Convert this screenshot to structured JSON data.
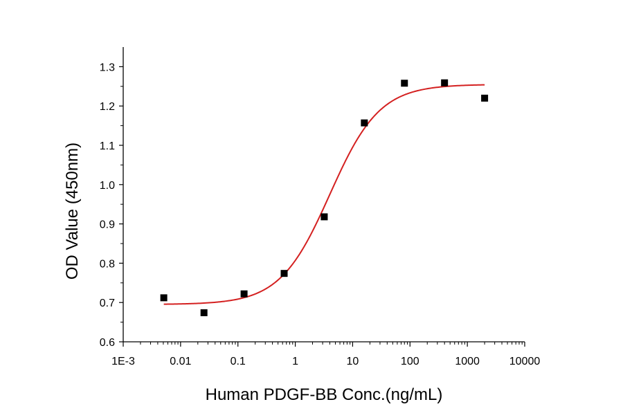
{
  "chart_data": {
    "type": "scatter",
    "xlabel": "Human PDGF-BB Conc.(ng/mL)",
    "ylabel": "OD Value (450nm)",
    "xscale": "log",
    "xlim": [
      0.001,
      10000
    ],
    "ylim": [
      0.6,
      1.35
    ],
    "xticks": [
      0.001,
      0.01,
      0.1,
      1,
      10,
      100,
      1000,
      10000
    ],
    "xtick_labels": [
      "1E-3",
      "0.01",
      "0.1",
      "1",
      "10",
      "100",
      "1000",
      "10000"
    ],
    "yticks": [
      0.6,
      0.7,
      0.8,
      0.9,
      1.0,
      1.1,
      1.2,
      1.3
    ],
    "ytick_labels": [
      "0.6",
      "0.7",
      "0.8",
      "0.9",
      "1.0",
      "1.1",
      "1.2",
      "1.3"
    ],
    "grid": false,
    "series": [
      {
        "kind": "points",
        "marker": "square",
        "color": "#000000",
        "x": [
          0.0051,
          0.0256,
          0.128,
          0.64,
          3.2,
          16,
          80,
          400,
          2000
        ],
        "y": [
          0.712,
          0.674,
          0.722,
          0.774,
          0.918,
          1.157,
          1.258,
          1.259,
          1.22
        ]
      },
      {
        "kind": "fit",
        "model": "4PL",
        "color": "#d42020",
        "bottom": 0.695,
        "top": 1.255,
        "ec50": 4.0,
        "hill": 1.0,
        "x_range": [
          0.0051,
          2000
        ]
      }
    ]
  }
}
